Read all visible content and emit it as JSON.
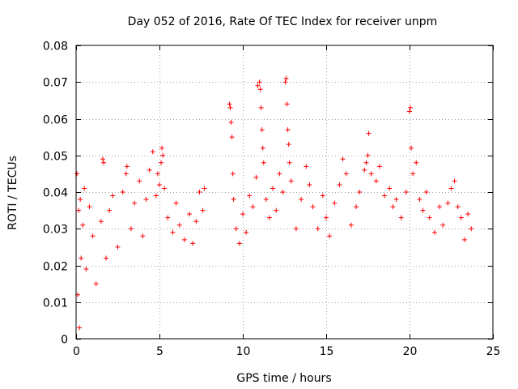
{
  "chart_data": {
    "type": "scatter",
    "title": "Day 052 of 2016, Rate Of TEC Index for receiver unpm",
    "xlabel": "GPS time / hours",
    "ylabel": "ROTI / TECUs",
    "xlim": [
      0,
      25
    ],
    "ylim": [
      0,
      0.08
    ],
    "xticks": [
      0,
      5,
      10,
      15,
      20,
      25
    ],
    "xtick_labels": [
      "0",
      "5",
      "10",
      "15",
      "20",
      "25"
    ],
    "yticks": [
      0,
      0.01,
      0.02,
      0.03,
      0.04,
      0.05,
      0.06,
      0.07,
      0.08
    ],
    "ytick_labels": [
      "0",
      "0.01",
      "0.02",
      "0.03",
      "0.04",
      "0.05",
      "0.06",
      "0.07",
      "0.08"
    ],
    "grid": true,
    "marker": "+",
    "color": "#ff0000",
    "series": [
      {
        "name": "ROTI",
        "points": [
          [
            0.05,
            0.045
          ],
          [
            0.1,
            0.012
          ],
          [
            0.15,
            0.035
          ],
          [
            0.2,
            0.003
          ],
          [
            0.25,
            0.038
          ],
          [
            0.3,
            0.022
          ],
          [
            0.4,
            0.031
          ],
          [
            0.5,
            0.041
          ],
          [
            0.6,
            0.019
          ],
          [
            0.8,
            0.036
          ],
          [
            1.0,
            0.028
          ],
          [
            1.2,
            0.015
          ],
          [
            1.5,
            0.032
          ],
          [
            1.6,
            0.049
          ],
          [
            1.65,
            0.048
          ],
          [
            1.8,
            0.022
          ],
          [
            2.0,
            0.035
          ],
          [
            2.2,
            0.039
          ],
          [
            2.5,
            0.025
          ],
          [
            2.8,
            0.04
          ],
          [
            3.0,
            0.045
          ],
          [
            3.05,
            0.047
          ],
          [
            3.3,
            0.03
          ],
          [
            3.5,
            0.037
          ],
          [
            3.8,
            0.043
          ],
          [
            4.0,
            0.028
          ],
          [
            4.2,
            0.038
          ],
          [
            4.4,
            0.046
          ],
          [
            4.6,
            0.051
          ],
          [
            4.8,
            0.039
          ],
          [
            4.9,
            0.045
          ],
          [
            5.0,
            0.042
          ],
          [
            5.1,
            0.048
          ],
          [
            5.15,
            0.052
          ],
          [
            5.2,
            0.05
          ],
          [
            5.3,
            0.041
          ],
          [
            5.5,
            0.033
          ],
          [
            5.8,
            0.029
          ],
          [
            6.0,
            0.037
          ],
          [
            6.2,
            0.031
          ],
          [
            6.5,
            0.027
          ],
          [
            6.8,
            0.034
          ],
          [
            7.0,
            0.026
          ],
          [
            7.2,
            0.032
          ],
          [
            7.4,
            0.04
          ],
          [
            7.6,
            0.035
          ],
          [
            7.7,
            0.041
          ],
          [
            9.2,
            0.064
          ],
          [
            9.25,
            0.063
          ],
          [
            9.3,
            0.059
          ],
          [
            9.35,
            0.055
          ],
          [
            9.4,
            0.045
          ],
          [
            9.45,
            0.038
          ],
          [
            9.6,
            0.03
          ],
          [
            9.8,
            0.026
          ],
          [
            10.0,
            0.034
          ],
          [
            10.2,
            0.029
          ],
          [
            10.4,
            0.039
          ],
          [
            10.6,
            0.036
          ],
          [
            10.8,
            0.044
          ],
          [
            10.9,
            0.069
          ],
          [
            11.0,
            0.07
          ],
          [
            11.05,
            0.068
          ],
          [
            11.1,
            0.063
          ],
          [
            11.15,
            0.057
          ],
          [
            11.2,
            0.052
          ],
          [
            11.25,
            0.048
          ],
          [
            11.4,
            0.038
          ],
          [
            11.6,
            0.033
          ],
          [
            11.8,
            0.041
          ],
          [
            12.0,
            0.035
          ],
          [
            12.2,
            0.045
          ],
          [
            12.4,
            0.04
          ],
          [
            12.55,
            0.07
          ],
          [
            12.6,
            0.071
          ],
          [
            12.65,
            0.064
          ],
          [
            12.7,
            0.057
          ],
          [
            12.75,
            0.053
          ],
          [
            12.8,
            0.048
          ],
          [
            12.9,
            0.043
          ],
          [
            13.2,
            0.03
          ],
          [
            13.5,
            0.038
          ],
          [
            13.8,
            0.047
          ],
          [
            14.0,
            0.042
          ],
          [
            14.2,
            0.036
          ],
          [
            14.5,
            0.03
          ],
          [
            14.8,
            0.039
          ],
          [
            15.0,
            0.033
          ],
          [
            15.2,
            0.028
          ],
          [
            15.5,
            0.037
          ],
          [
            15.8,
            0.042
          ],
          [
            16.0,
            0.049
          ],
          [
            16.2,
            0.045
          ],
          [
            16.5,
            0.031
          ],
          [
            16.8,
            0.036
          ],
          [
            17.0,
            0.04
          ],
          [
            17.3,
            0.046
          ],
          [
            17.4,
            0.048
          ],
          [
            17.5,
            0.05
          ],
          [
            17.55,
            0.056
          ],
          [
            17.7,
            0.045
          ],
          [
            18.0,
            0.043
          ],
          [
            18.2,
            0.047
          ],
          [
            18.5,
            0.039
          ],
          [
            18.8,
            0.041
          ],
          [
            19.0,
            0.036
          ],
          [
            19.2,
            0.038
          ],
          [
            19.5,
            0.033
          ],
          [
            19.8,
            0.04
          ],
          [
            20.0,
            0.062
          ],
          [
            20.05,
            0.063
          ],
          [
            20.1,
            0.052
          ],
          [
            20.2,
            0.045
          ],
          [
            20.4,
            0.048
          ],
          [
            20.6,
            0.038
          ],
          [
            20.8,
            0.035
          ],
          [
            21.0,
            0.04
          ],
          [
            21.2,
            0.033
          ],
          [
            21.5,
            0.029
          ],
          [
            21.8,
            0.036
          ],
          [
            22.0,
            0.031
          ],
          [
            22.3,
            0.037
          ],
          [
            22.5,
            0.041
          ],
          [
            22.7,
            0.043
          ],
          [
            22.9,
            0.036
          ],
          [
            23.1,
            0.033
          ],
          [
            23.3,
            0.027
          ],
          [
            23.5,
            0.034
          ],
          [
            23.7,
            0.03
          ]
        ]
      }
    ]
  }
}
